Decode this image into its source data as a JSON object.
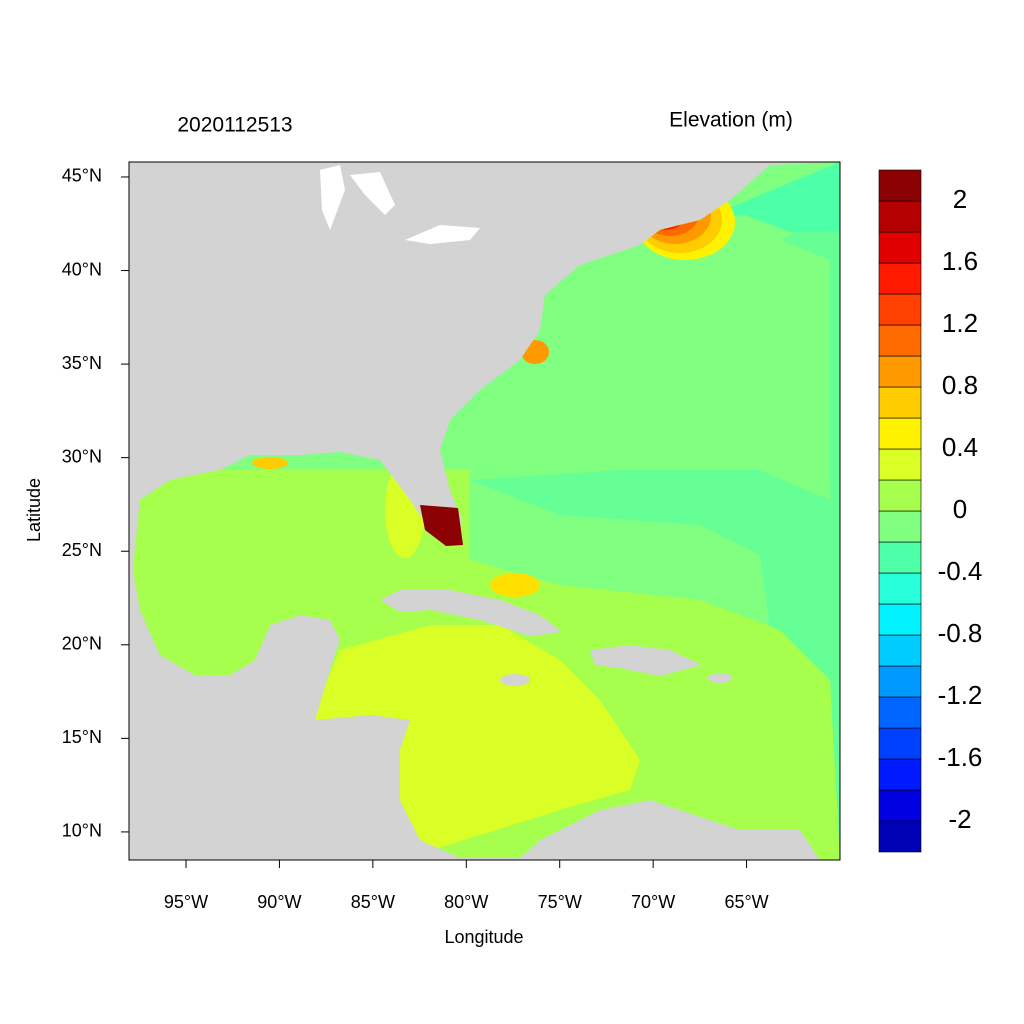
{
  "title": "2020112513",
  "legend_title": "Elevation (m)",
  "x_label": "Longitude",
  "y_label": "Latitude",
  "xlim": [
    -98.05,
    -60
  ],
  "ylim": [
    8.5,
    45.8
  ],
  "xticks": [
    {
      "value": -95,
      "label": "95°W"
    },
    {
      "value": -90,
      "label": "90°W"
    },
    {
      "value": -85,
      "label": "85°W"
    },
    {
      "value": -80,
      "label": "80°W"
    },
    {
      "value": -75,
      "label": "75°W"
    },
    {
      "value": -70,
      "label": "70°W"
    },
    {
      "value": -65,
      "label": "65°W"
    }
  ],
  "yticks": [
    {
      "value": 10,
      "label": "10°N"
    },
    {
      "value": 15,
      "label": "15°N"
    },
    {
      "value": 20,
      "label": "20°N"
    },
    {
      "value": 25,
      "label": "25°N"
    },
    {
      "value": 30,
      "label": "30°N"
    },
    {
      "value": 35,
      "label": "35°N"
    },
    {
      "value": 40,
      "label": "40°N"
    },
    {
      "value": 45,
      "label": "45°N"
    }
  ],
  "colorbar": {
    "lim": [
      -2.2,
      2.2
    ],
    "ticks": [
      2,
      1.6,
      1.2,
      0.8,
      0.4,
      0,
      -0.4,
      -0.8,
      -1.2,
      -1.6,
      -2
    ],
    "colors": [
      "#0000b4",
      "#0000e0",
      "#001aff",
      "#0040ff",
      "#0066ff",
      "#0099ff",
      "#00ccff",
      "#00f2ff",
      "#26ffd9",
      "#4dffa6",
      "#80ff80",
      "#a6ff4d",
      "#d9ff26",
      "#fff200",
      "#ffcc00",
      "#ff9900",
      "#ff6a00",
      "#ff4000",
      "#ff1a00",
      "#e00000",
      "#b40000",
      "#8b0000"
    ]
  }
}
